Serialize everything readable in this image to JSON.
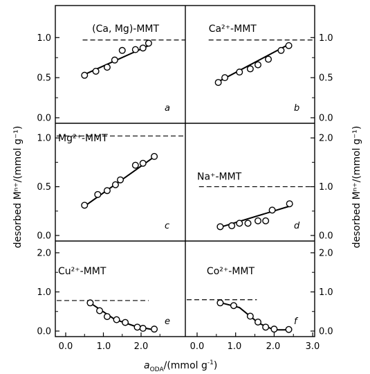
{
  "x_axis": {
    "label": {
      "main": "a",
      "sub": "ODA",
      "unit": "/(mmol g",
      "sup": "-1",
      "close": ")"
    },
    "left_ticks": [
      "0.0",
      "1.0",
      "2.0"
    ],
    "right_ticks": [
      "0.0",
      "1.0",
      "2.0",
      "3.0"
    ]
  },
  "y_axis": {
    "label": "desorbed Mⁿ⁺/(mmol g⁻¹)"
  },
  "chart_data": [
    {
      "panel": "a",
      "title": "(Ca, Mg)-MMT",
      "type": "scatter",
      "xlim": [
        0,
        2.6
      ],
      "ylim": [
        0,
        1.4
      ],
      "yticks": [
        "0.0",
        "0.5",
        "1.0"
      ],
      "dashed": 0.97,
      "points": [
        [
          0.5,
          0.53
        ],
        [
          0.8,
          0.58
        ],
        [
          1.1,
          0.63
        ],
        [
          1.3,
          0.72
        ],
        [
          1.5,
          0.84
        ],
        [
          1.85,
          0.85
        ],
        [
          2.05,
          0.87
        ],
        [
          2.2,
          0.93
        ]
      ],
      "fit": [
        [
          0.5,
          0.54
        ],
        [
          2.2,
          0.9
        ]
      ]
    },
    {
      "panel": "b",
      "title": "Ca²⁺-MMT",
      "type": "scatter",
      "xlim": [
        0,
        3.0
      ],
      "ylim": [
        0,
        1.4
      ],
      "yticks": [
        "0.0",
        "0.5",
        "1.0"
      ],
      "dashed": 0.97,
      "points": [
        [
          0.55,
          0.44
        ],
        [
          0.72,
          0.5
        ],
        [
          1.1,
          0.57
        ],
        [
          1.38,
          0.61
        ],
        [
          1.58,
          0.66
        ],
        [
          1.85,
          0.73
        ],
        [
          2.18,
          0.84
        ],
        [
          2.38,
          0.9
        ]
      ],
      "fit": [
        [
          0.55,
          0.45
        ],
        [
          2.4,
          0.92
        ]
      ]
    },
    {
      "panel": "c",
      "title": "Mg²⁺-MMT",
      "type": "scatter",
      "xlim": [
        0,
        2.6
      ],
      "ylim": [
        0,
        1.15
      ],
      "yticks": [
        "0.0",
        "0.5",
        "1.0"
      ],
      "dashed": 1.02,
      "points": [
        [
          0.5,
          0.31
        ],
        [
          0.85,
          0.42
        ],
        [
          1.1,
          0.46
        ],
        [
          1.32,
          0.52
        ],
        [
          1.45,
          0.57
        ],
        [
          1.85,
          0.72
        ],
        [
          2.05,
          0.74
        ],
        [
          2.35,
          0.81
        ]
      ],
      "fit": [
        [
          0.5,
          0.3
        ],
        [
          2.4,
          0.82
        ]
      ]
    },
    {
      "panel": "d",
      "title": "Na⁺-MMT",
      "type": "scatter",
      "xlim": [
        0,
        3.0
      ],
      "ylim": [
        0,
        2.3
      ],
      "yticks": [
        "0.0",
        "1.0",
        "2.0"
      ],
      "dashed": 1.0,
      "points": [
        [
          0.6,
          0.18
        ],
        [
          0.9,
          0.2
        ],
        [
          1.1,
          0.25
        ],
        [
          1.32,
          0.25
        ],
        [
          1.58,
          0.3
        ],
        [
          1.78,
          0.3
        ],
        [
          1.95,
          0.52
        ],
        [
          2.4,
          0.65
        ]
      ],
      "fit": [
        [
          0.6,
          0.17
        ],
        [
          2.4,
          0.6
        ]
      ]
    },
    {
      "panel": "e",
      "title": "Cu²⁺-MMT",
      "type": "scatter",
      "xlim": [
        0,
        2.6
      ],
      "ylim": [
        0,
        2.3
      ],
      "yticks": [
        "0.0",
        "1.0",
        "2.0"
      ],
      "dashed": 0.78,
      "points": [
        [
          0.65,
          0.72
        ],
        [
          0.9,
          0.52
        ],
        [
          1.1,
          0.37
        ],
        [
          1.35,
          0.29
        ],
        [
          1.58,
          0.22
        ],
        [
          1.9,
          0.1
        ],
        [
          2.05,
          0.07
        ],
        [
          2.35,
          0.05
        ]
      ],
      "fit": [
        [
          0.65,
          0.72
        ],
        [
          1.3,
          0.3
        ],
        [
          1.85,
          0.12
        ],
        [
          2.3,
          0.04
        ]
      ]
    },
    {
      "panel": "f",
      "title": "Co²⁺-MMT",
      "type": "scatter",
      "xlim": [
        0,
        3.0
      ],
      "ylim": [
        0,
        2.3
      ],
      "yticks": [
        "0.0",
        "1.0",
        "2.0"
      ],
      "dashed": 0.8,
      "points": [
        [
          0.6,
          0.72
        ],
        [
          0.95,
          0.65
        ],
        [
          1.38,
          0.38
        ],
        [
          1.58,
          0.23
        ],
        [
          1.78,
          0.1
        ],
        [
          2.0,
          0.05
        ],
        [
          2.38,
          0.04
        ]
      ],
      "fit": [
        [
          0.55,
          0.74
        ],
        [
          1.1,
          0.6
        ],
        [
          1.6,
          0.2
        ],
        [
          2.0,
          0.03
        ],
        [
          2.4,
          0.03
        ]
      ]
    }
  ]
}
